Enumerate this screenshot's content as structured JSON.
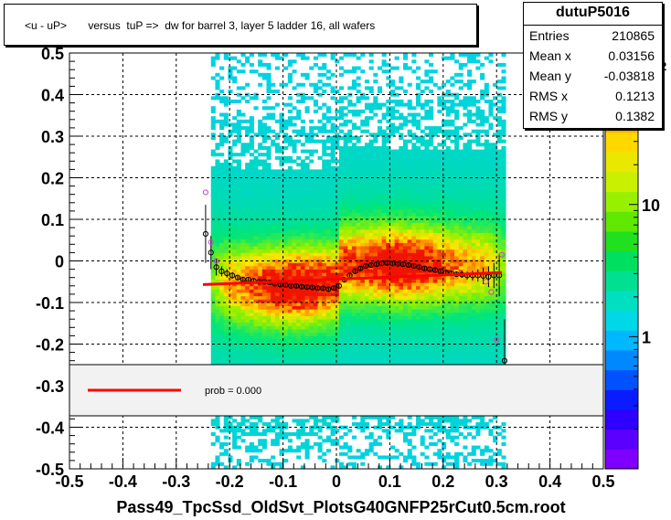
{
  "title": "<u - uP>       versus  tuP =>  dw for barrel 3, layer 5 ladder 16, all wafers",
  "stats": {
    "name": "dutuP5016",
    "rows": [
      {
        "label": "Entries",
        "value": "210865"
      },
      {
        "label": "Mean x",
        "value": "0.03156"
      },
      {
        "label": "Mean y",
        "value": "-0.03818"
      },
      {
        "label": "RMS x",
        "value": "0.1213"
      },
      {
        "label": "RMS y",
        "value": "0.1382"
      }
    ]
  },
  "legend": {
    "label": "prob = 0.000",
    "line_color": "#ff0000"
  },
  "colors": {
    "fit_line": "#ff0000",
    "profile_marker": "#000000",
    "alt_marker": "#cc44cc"
  },
  "chart_data": {
    "type": "heatmap",
    "title": "<u - uP>       versus  tuP =>  dw for barrel 3, layer 5 ladder 16, all wafers",
    "xlabel": "Pass49_TpcSsd_OldSvt_PlotsG40GNFP25rCut0.5cm.root",
    "ylabel": "",
    "xlim": [
      -0.5,
      0.5
    ],
    "ylim": [
      -0.5,
      0.5
    ],
    "x_ticks": [
      "-0.5",
      "-0.4",
      "-0.3",
      "-0.2",
      "-0.1",
      "0",
      "0.1",
      "0.2",
      "0.3",
      "0.4",
      "0.5"
    ],
    "y_ticks": [
      "-0.5",
      "-0.4",
      "-0.3",
      "-0.2",
      "-0.1",
      "0",
      "0.1",
      "0.2",
      "0.3",
      "0.4",
      "0.5"
    ],
    "z_scale": "log",
    "z_ticks": [
      "1",
      "10",
      "10^2"
    ],
    "grid": true,
    "occupied_x_range": [
      -0.235,
      0.31
    ],
    "profile": {
      "x": [
        -0.245,
        -0.235,
        -0.225,
        -0.215,
        -0.205,
        -0.195,
        -0.185,
        -0.175,
        -0.165,
        -0.155,
        -0.145,
        -0.135,
        -0.125,
        -0.115,
        -0.105,
        -0.095,
        -0.085,
        -0.075,
        -0.065,
        -0.055,
        -0.045,
        -0.035,
        -0.025,
        -0.015,
        -0.005,
        0.005,
        0.015,
        0.025,
        0.035,
        0.045,
        0.055,
        0.065,
        0.075,
        0.085,
        0.095,
        0.105,
        0.115,
        0.125,
        0.135,
        0.145,
        0.155,
        0.165,
        0.175,
        0.185,
        0.195,
        0.205,
        0.215,
        0.225,
        0.235,
        0.245,
        0.255,
        0.265,
        0.275,
        0.285,
        0.295,
        0.305,
        0.315
      ],
      "y": [
        0.065,
        0.02,
        -0.015,
        -0.025,
        -0.03,
        -0.035,
        -0.04,
        -0.045,
        -0.045,
        -0.048,
        -0.05,
        -0.05,
        -0.052,
        -0.055,
        -0.057,
        -0.058,
        -0.06,
        -0.06,
        -0.062,
        -0.063,
        -0.064,
        -0.065,
        -0.066,
        -0.068,
        -0.065,
        -0.06,
        -0.045,
        -0.035,
        -0.025,
        -0.018,
        -0.012,
        -0.01,
        -0.008,
        -0.006,
        -0.005,
        -0.006,
        -0.007,
        -0.008,
        -0.01,
        -0.012,
        -0.015,
        -0.018,
        -0.02,
        -0.022,
        -0.025,
        -0.028,
        -0.03,
        -0.032,
        -0.033,
        -0.035,
        -0.035,
        -0.035,
        -0.036,
        -0.038,
        -0.035,
        -0.035,
        -0.24
      ],
      "err": [
        0.07,
        0.04,
        0.02,
        0.012,
        0.01,
        0.008,
        0.007,
        0.006,
        0.006,
        0.005,
        0.005,
        0.005,
        0.005,
        0.005,
        0.005,
        0.005,
        0.005,
        0.005,
        0.005,
        0.005,
        0.005,
        0.005,
        0.005,
        0.005,
        0.005,
        0.005,
        0.005,
        0.005,
        0.005,
        0.005,
        0.005,
        0.005,
        0.005,
        0.005,
        0.005,
        0.005,
        0.005,
        0.005,
        0.005,
        0.005,
        0.005,
        0.005,
        0.005,
        0.005,
        0.005,
        0.006,
        0.006,
        0.007,
        0.008,
        0.01,
        0.012,
        0.015,
        0.02,
        0.025,
        0.03,
        0.05,
        0.1
      ]
    },
    "alt_profile": {
      "x": [
        -0.245,
        -0.235,
        -0.225,
        0.28,
        0.29,
        0.3,
        0.31
      ],
      "y": [
        0.165,
        0.045,
        0.0,
        -0.05,
        -0.075,
        -0.19,
        0.015
      ]
    },
    "fit_line": {
      "x": [
        -0.25,
        0.31
      ],
      "y": [
        -0.057,
        -0.028
      ]
    }
  }
}
